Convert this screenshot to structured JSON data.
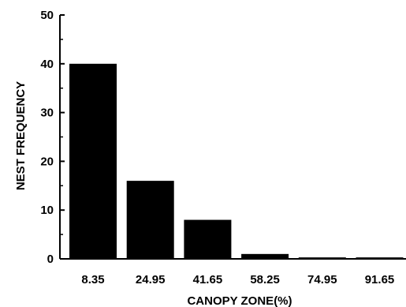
{
  "chart_data": {
    "type": "bar",
    "title": "",
    "xlabel": "CANOPY ZONE(%)",
    "ylabel": "NEST FREQUENCY",
    "categories": [
      "8.35",
      "24.95",
      "41.65",
      "58.25",
      "74.95",
      "91.65"
    ],
    "values": [
      40,
      16,
      8,
      1,
      0.3,
      0.3
    ],
    "ylim": [
      0,
      50
    ],
    "yticks": [
      0,
      10,
      20,
      30,
      40,
      50
    ],
    "grid": false,
    "bar_color": "#000000"
  }
}
